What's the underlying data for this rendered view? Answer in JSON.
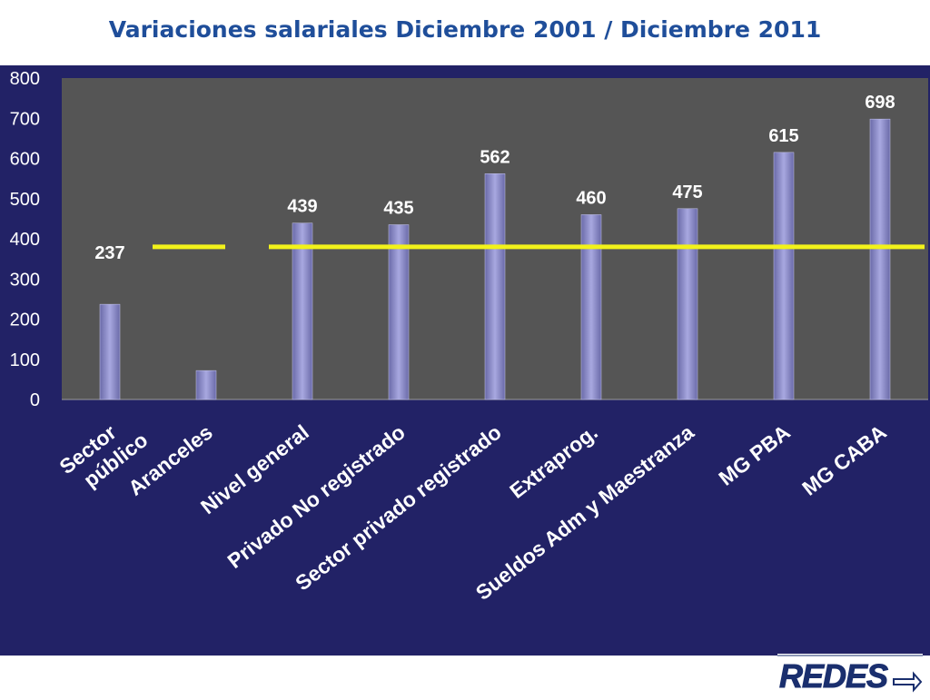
{
  "title": "Variaciones salariales Diciembre 2001 / Diciembre 2011",
  "logo_text": "REDES",
  "colors": {
    "title": "#1f4e9a",
    "panel": "#222266",
    "plot_area": "#555555",
    "bar": "#8c8cc8",
    "reference_line": "#f2f21a",
    "label": "#ffffff"
  },
  "chart_data": {
    "type": "bar",
    "title": "Variaciones salariales Diciembre 2001 / Diciembre 2011",
    "xlabel": "",
    "ylabel": "",
    "ylim": [
      0,
      800
    ],
    "yticks": [
      0,
      100,
      200,
      300,
      400,
      500,
      600,
      700,
      800
    ],
    "grid": false,
    "categories": [
      [
        "Sector",
        "público"
      ],
      [
        "Aranceles"
      ],
      [
        "Nivel general"
      ],
      [
        "Privado No registrado"
      ],
      [
        "Sector privado registrado"
      ],
      [
        "Extraprog."
      ],
      [
        "Sueldos Adm y Maestranza"
      ],
      [
        "MG PBA"
      ],
      [
        "MG CABA"
      ]
    ],
    "values": [
      237,
      72,
      439,
      435,
      562,
      460,
      475,
      615,
      698
    ],
    "data_labels": [
      "237",
      "",
      "439",
      "435",
      "562",
      "460",
      "475",
      "615",
      "698"
    ],
    "reference_line": {
      "value": 380,
      "color": "#f2f21a"
    }
  }
}
